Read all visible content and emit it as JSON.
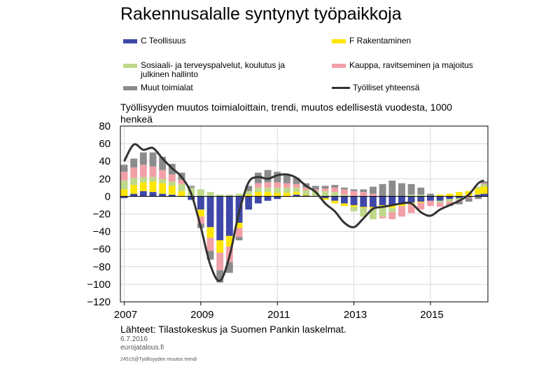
{
  "title": "Rakennusalalle syntynyt työpaikkoja",
  "subtitle": "Työllisyyden muutos toimialoittain, trendi, muutos edellisestä vuodesta, 1000 henkeä",
  "source": "Lähteet: Tilastokeskus ja Suomen Pankin laskelmat.",
  "date": "6.7.2016",
  "site": "eurojatalous.fi",
  "code": "24515@Työllisyyden muutos trendi",
  "legend": [
    {
      "label": "C Teollisuus",
      "color": "#3F48A8",
      "kind": "bar"
    },
    {
      "label": "F Rakentaminen",
      "color": "#FFE600",
      "kind": "bar"
    },
    {
      "label": "Sosiaali- ja terveyspalvelut, koulutus ja julkinen hallinto",
      "color": "#BFD88A",
      "kind": "bar"
    },
    {
      "label": "Kauppa, ravitseminen ja majoitus",
      "color": "#F2A0A8",
      "kind": "bar"
    },
    {
      "label": "Muut toimialat",
      "color": "#8C8C8C",
      "kind": "bar"
    },
    {
      "label": "Työlliset yhteensä",
      "color": "#333333",
      "kind": "line"
    }
  ],
  "chart_data": {
    "type": "bar",
    "stacked": true,
    "xlabel": "",
    "ylabel": "",
    "ylim": [
      -120,
      80
    ],
    "yticks": [
      "80",
      "60",
      "40",
      "20",
      "0",
      "−20",
      "−40",
      "−60",
      "−80",
      "−100",
      "−120"
    ],
    "ytick_values": [
      80,
      60,
      40,
      20,
      0,
      -20,
      -40,
      -60,
      -80,
      -100,
      -120
    ],
    "xlim": [
      2006.9,
      2016.5
    ],
    "xticks": [
      {
        "label": "2007",
        "value": 2007.0
      },
      {
        "label": "2009",
        "value": 2009.0
      },
      {
        "label": "2011",
        "value": 2011.0
      },
      {
        "label": "2013",
        "value": 2013.0
      },
      {
        "label": "2015",
        "value": 2015.0
      }
    ],
    "grid": true,
    "series_x": [
      2007.0,
      2007.25,
      2007.5,
      2007.75,
      2008.0,
      2008.25,
      2008.5,
      2008.75,
      2009.0,
      2009.25,
      2009.5,
      2009.75,
      2010.0,
      2010.25,
      2010.5,
      2010.75,
      2011.0,
      2011.25,
      2011.5,
      2011.75,
      2012.0,
      2012.25,
      2012.5,
      2012.75,
      2013.0,
      2013.25,
      2013.5,
      2013.75,
      2014.0,
      2014.25,
      2014.5,
      2014.75,
      2015.0,
      2015.25,
      2015.5,
      2015.75,
      2016.0,
      2016.25,
      2016.4
    ],
    "series": [
      {
        "name": "C Teollisuus",
        "color": "#3F48A8",
        "values": [
          -2,
          3,
          6,
          5,
          3,
          2,
          0,
          -4,
          -15,
          -35,
          -50,
          -45,
          -30,
          -15,
          -8,
          -5,
          -3,
          0,
          2,
          1,
          0,
          -2,
          -5,
          -8,
          -10,
          -12,
          -12,
          -10,
          -10,
          -8,
          -7,
          -6,
          -5,
          -5,
          -3,
          -2,
          -1,
          2,
          3
        ]
      },
      {
        "name": "F Rakentaminen",
        "color": "#FFE600",
        "values": [
          8,
          10,
          10,
          12,
          12,
          10,
          6,
          0,
          -8,
          -12,
          -14,
          -12,
          -6,
          2,
          5,
          5,
          4,
          4,
          3,
          1,
          0,
          -2,
          -3,
          -3,
          -2,
          -1,
          -2,
          -3,
          -3,
          -3,
          -2,
          -1,
          0,
          2,
          3,
          5,
          6,
          7,
          8
        ]
      },
      {
        "name": "Sosiaali- ja terveyspalvelut, koulutus ja julkinen hallinto",
        "color": "#BFD88A",
        "values": [
          10,
          8,
          6,
          5,
          5,
          5,
          8,
          10,
          8,
          5,
          2,
          2,
          3,
          4,
          5,
          5,
          6,
          6,
          5,
          5,
          6,
          6,
          5,
          2,
          -5,
          -10,
          -12,
          -10,
          -5,
          0,
          2,
          2,
          0,
          -2,
          -3,
          -2,
          0,
          2,
          3
        ]
      },
      {
        "name": "Kauppa, ravitseminen ja majoitus",
        "color": "#F2A0A8",
        "values": [
          10,
          12,
          14,
          12,
          10,
          8,
          5,
          0,
          -8,
          -15,
          -20,
          -18,
          -10,
          0,
          5,
          6,
          6,
          5,
          4,
          3,
          2,
          3,
          5,
          6,
          6,
          5,
          3,
          -2,
          -8,
          -12,
          -10,
          -8,
          -6,
          -5,
          -3,
          -2,
          -1,
          0,
          1
        ]
      },
      {
        "name": "Muut toimialat",
        "color": "#8C8C8C",
        "values": [
          8,
          10,
          14,
          16,
          15,
          12,
          8,
          2,
          -5,
          -10,
          -14,
          -12,
          -4,
          6,
          12,
          14,
          12,
          10,
          7,
          5,
          4,
          3,
          3,
          2,
          2,
          3,
          8,
          14,
          18,
          15,
          12,
          8,
          3,
          0,
          -2,
          -3,
          -4,
          -3,
          2
        ]
      },
      {
        "name": "Työlliset yhteensä",
        "color": "#333333",
        "kind": "line",
        "values": [
          40,
          59,
          53,
          55,
          43,
          32,
          22,
          3,
          -35,
          -78,
          -96,
          -68,
          -18,
          16,
          22,
          20,
          24,
          25,
          21,
          12,
          5,
          -8,
          -17,
          -30,
          -35,
          -25,
          -14,
          -12,
          -10,
          -8,
          -8,
          -18,
          -22,
          -15,
          -10,
          -5,
          2,
          15,
          18
        ]
      }
    ]
  }
}
